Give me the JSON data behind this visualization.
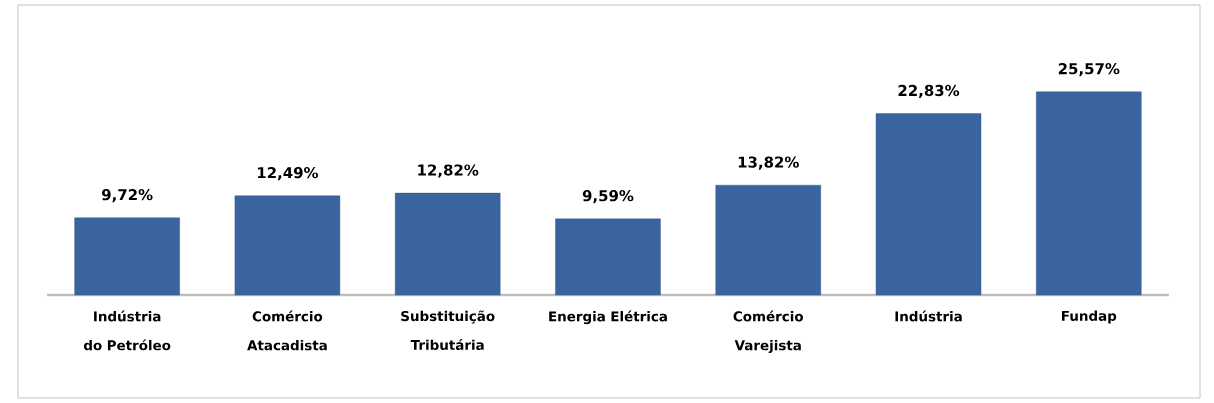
{
  "chart_data": {
    "type": "bar",
    "categories": [
      "Indústria do Petróleo",
      "Comércio Atacadista",
      "Substituição Tributária",
      "Energia Elétrica",
      "Comércio Varejista",
      "Indústria",
      "Fundap"
    ],
    "values": [
      9.72,
      12.49,
      12.82,
      9.59,
      13.82,
      22.83,
      25.57
    ],
    "value_labels": [
      "9,72%",
      "12,49%",
      "12,82%",
      "9,59%",
      "13,82%",
      "22,83%",
      "25,57%"
    ],
    "color": "#3a64a0"
  }
}
